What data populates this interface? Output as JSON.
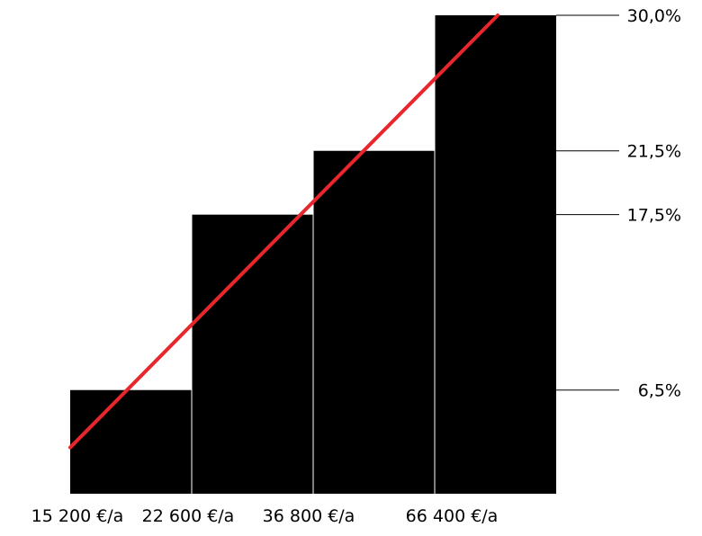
{
  "chart_data": {
    "type": "bar",
    "title": "",
    "xlabel": "",
    "ylabel": "",
    "categories": [
      "15 200 €/a",
      "22 600 €/a",
      "36 800 €/a",
      "66 400 €/a"
    ],
    "values": [
      6.5,
      17.5,
      21.5,
      30.0
    ],
    "y_tick_labels": [
      "6,5%",
      "17,5%",
      "21,5%",
      "30,0%"
    ],
    "bar_color": "#000000",
    "line_color": "#e8262b",
    "trend_line": {
      "x_from": "15 200 €/a",
      "y_from": 2.9,
      "x_to": "66 400 €/a",
      "y_to": 30.0
    },
    "grid": false,
    "legend": "none"
  }
}
